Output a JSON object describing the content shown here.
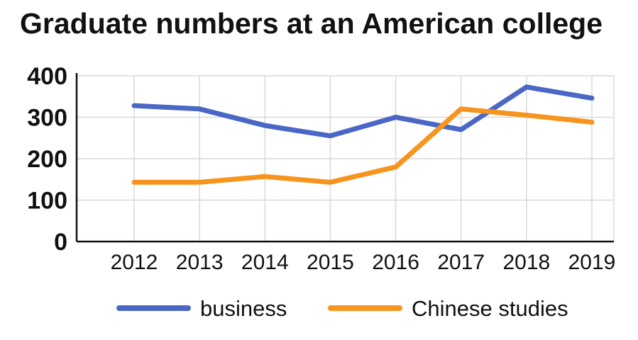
{
  "chart_data": {
    "type": "line",
    "title": "Graduate numbers at an American college",
    "xlabel": "",
    "ylabel": "",
    "x": [
      "2012",
      "2013",
      "2014",
      "2015",
      "2016",
      "2017",
      "2018",
      "2019"
    ],
    "ylim": [
      0,
      400
    ],
    "yticks": [
      "0",
      "100",
      "200",
      "300",
      "400"
    ],
    "grid": true,
    "legend_position": "bottom",
    "series": [
      {
        "name": "business",
        "color": "#4a67c6",
        "values": [
          328,
          320,
          280,
          255,
          300,
          270,
          373,
          346
        ]
      },
      {
        "name": "Chinese studies",
        "color": "#f7941d",
        "values": [
          143,
          143,
          157,
          143,
          180,
          320,
          305,
          288
        ]
      }
    ]
  }
}
